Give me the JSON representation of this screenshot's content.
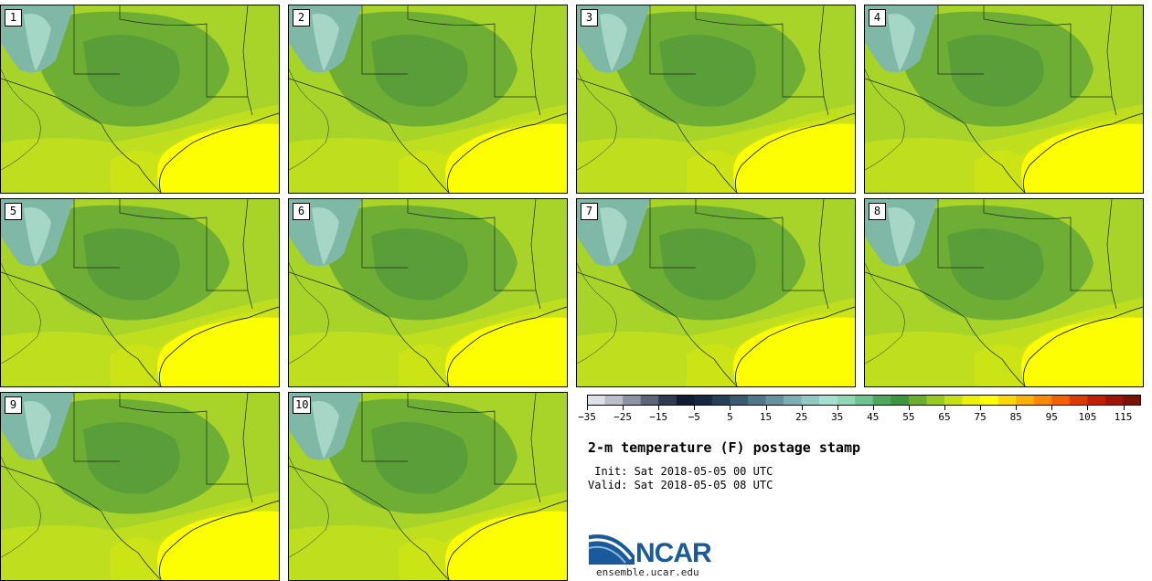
{
  "title": "2-m temperature (F) postage stamp",
  "init_text": " Init: Sat 2018-05-05 00 UTC",
  "valid_text": "Valid: Sat 2018-05-05 08 UTC",
  "logo_text": "NCAR",
  "logo_url": "ensemble.ucar.edu",
  "members": [
    "1",
    "2",
    "3",
    "4",
    "5",
    "6",
    "7",
    "8",
    "9",
    "10"
  ],
  "colorbar": {
    "min": -35,
    "max": 120,
    "step": 5,
    "tick_labels": [
      "−35",
      "−25",
      "−15",
      "−5",
      "5",
      "15",
      "25",
      "35",
      "45",
      "55",
      "65",
      "75",
      "85",
      "95",
      "105",
      "115"
    ],
    "colors": [
      "#dde0e6",
      "#b9bec9",
      "#8c93a2",
      "#5c6577",
      "#2f3a4f",
      "#0f1c33",
      "#152842",
      "#26405a",
      "#3a5a72",
      "#4f7689",
      "#65929f",
      "#7daeb4",
      "#92c8c4",
      "#a6e0d3",
      "#8fd8b4",
      "#6cc591",
      "#4da85e",
      "#3b963d",
      "#6aaf2b",
      "#9ac91f",
      "#c7e014",
      "#edf10a",
      "#ffff00",
      "#ffd700",
      "#ffb000",
      "#ff8a00",
      "#f56000",
      "#dd3a00",
      "#c02000",
      "#a01408",
      "#7a1208"
    ]
  },
  "map_colors": {
    "ocean": "#fefe02",
    "coast_plain": "#cce316",
    "plain": "#a8d42a",
    "warm_band": "#bfdf1e",
    "cool_interior": "#6eae35",
    "upland": "#5a9e3a",
    "mountain": "#7fb8a6",
    "mountain_peak": "#a6d6c6",
    "border": "#1b2a1b"
  }
}
